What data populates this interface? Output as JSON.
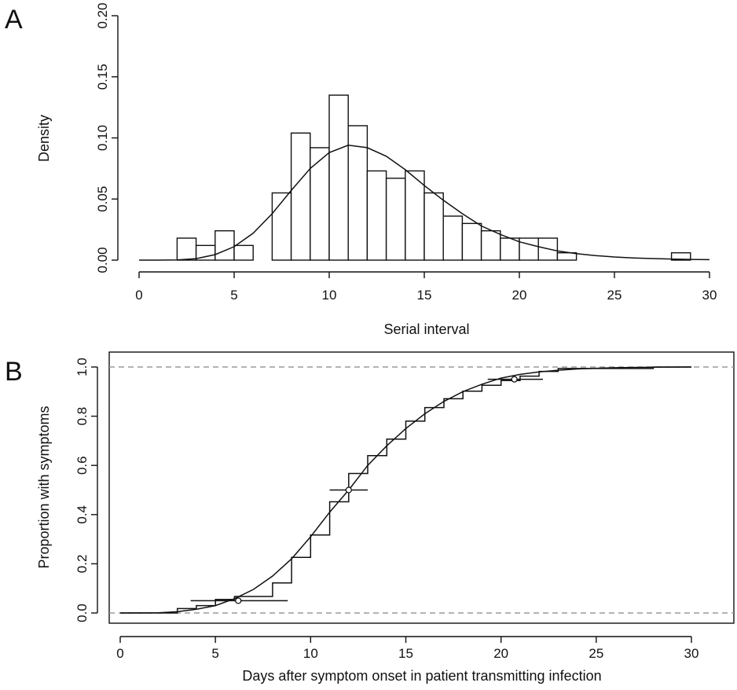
{
  "chart_data": [
    {
      "panel": "A",
      "type": "bar",
      "xlabel": "Serial interval",
      "ylabel": "Density",
      "xlim": [
        0,
        30
      ],
      "ylim": [
        0,
        0.2
      ],
      "xticks": [
        0,
        5,
        10,
        15,
        20,
        25,
        30
      ],
      "yticks": [
        "0.00",
        "0.05",
        "0.10",
        "0.15",
        "0.20"
      ],
      "bin_width": 1,
      "bins": [
        {
          "x0": 2,
          "value": 0.018
        },
        {
          "x0": 3,
          "value": 0.012
        },
        {
          "x0": 4,
          "value": 0.024
        },
        {
          "x0": 5,
          "value": 0.012
        },
        {
          "x0": 7,
          "value": 0.055
        },
        {
          "x0": 8,
          "value": 0.104
        },
        {
          "x0": 9,
          "value": 0.092
        },
        {
          "x0": 10,
          "value": 0.135
        },
        {
          "x0": 11,
          "value": 0.11
        },
        {
          "x0": 12,
          "value": 0.073
        },
        {
          "x0": 13,
          "value": 0.067
        },
        {
          "x0": 14,
          "value": 0.073
        },
        {
          "x0": 15,
          "value": 0.055
        },
        {
          "x0": 16,
          "value": 0.036
        },
        {
          "x0": 17,
          "value": 0.03
        },
        {
          "x0": 18,
          "value": 0.024
        },
        {
          "x0": 19,
          "value": 0.018
        },
        {
          "x0": 20,
          "value": 0.018
        },
        {
          "x0": 21,
          "value": 0.018
        },
        {
          "x0": 22,
          "value": 0.006
        },
        {
          "x0": 28,
          "value": 0.006
        }
      ],
      "fit_curve": {
        "type": "lognormal-density",
        "x": [
          0,
          1,
          2,
          3,
          4,
          5,
          6,
          7,
          8,
          9,
          10,
          11,
          12,
          13,
          14,
          15,
          16,
          17,
          18,
          19,
          20,
          21,
          22,
          23,
          24,
          25,
          26,
          27,
          28,
          29,
          30
        ],
        "y": [
          0,
          0,
          0.0002,
          0.0012,
          0.0045,
          0.011,
          0.022,
          0.038,
          0.057,
          0.075,
          0.088,
          0.094,
          0.092,
          0.085,
          0.074,
          0.061,
          0.049,
          0.038,
          0.028,
          0.021,
          0.015,
          0.011,
          0.0075,
          0.0053,
          0.0037,
          0.0026,
          0.0018,
          0.0013,
          0.0009,
          0.0006,
          0.0004
        ]
      }
    },
    {
      "panel": "B",
      "type": "line",
      "xlabel": "Days after symptom  onset in patient transmitting infection",
      "ylabel": "Proportion with symptoms",
      "xlim": [
        0,
        32
      ],
      "ylim": [
        0,
        1
      ],
      "xticks": [
        0,
        5,
        10,
        15,
        20,
        25,
        30
      ],
      "yticks": [
        "0.0",
        "0.2",
        "0.4",
        "0.6",
        "0.8",
        "1.0"
      ],
      "reference_lines_y": [
        0,
        1
      ],
      "empirical_cdf": {
        "x": [
          0,
          3,
          4,
          5,
          6,
          7,
          8,
          9,
          10,
          11,
          12,
          13,
          14,
          15,
          16,
          17,
          18,
          19,
          20,
          21,
          22,
          23,
          28,
          30
        ],
        "y": [
          0,
          0.018,
          0.03,
          0.055,
          0.067,
          0.067,
          0.122,
          0.226,
          0.317,
          0.452,
          0.567,
          0.64,
          0.707,
          0.78,
          0.835,
          0.871,
          0.902,
          0.926,
          0.945,
          0.963,
          0.982,
          0.994,
          1.0,
          1.0
        ]
      },
      "fit_curve": {
        "x": [
          0,
          2,
          3,
          4,
          5,
          6,
          7,
          8,
          9,
          10,
          11,
          12,
          13,
          14,
          15,
          16,
          17,
          18,
          19,
          20,
          21,
          22,
          23,
          24,
          25,
          26,
          28,
          30
        ],
        "y": [
          0,
          0.001,
          0.005,
          0.015,
          0.03,
          0.058,
          0.096,
          0.15,
          0.22,
          0.31,
          0.41,
          0.5,
          0.6,
          0.68,
          0.75,
          0.81,
          0.86,
          0.9,
          0.93,
          0.955,
          0.97,
          0.98,
          0.987,
          0.992,
          0.995,
          0.997,
          0.999,
          1.0
        ]
      },
      "quantile_markers": [
        {
          "p": 0.05,
          "median": 6.2,
          "low": 3.7,
          "high": 8.8
        },
        {
          "p": 0.5,
          "median": 12.0,
          "low": 11.0,
          "high": 13.0
        },
        {
          "p": 0.95,
          "median": 20.7,
          "low": 19.3,
          "high": 22.2
        }
      ]
    }
  ],
  "panels": {
    "a": {
      "letter": "A"
    },
    "b": {
      "letter": "B"
    }
  }
}
